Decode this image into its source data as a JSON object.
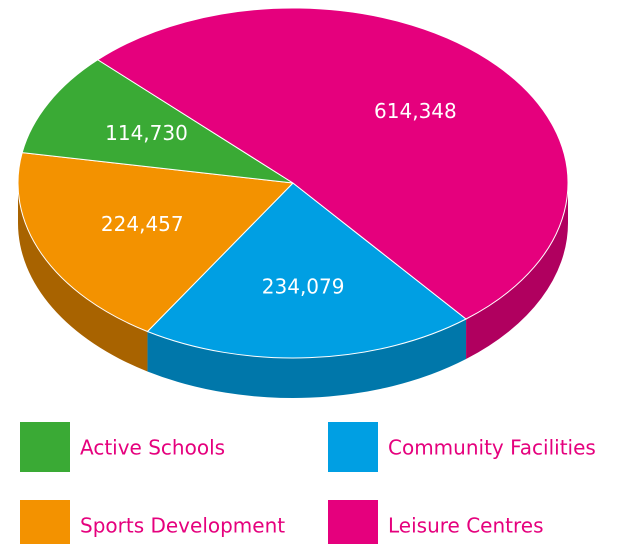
{
  "chart_data": {
    "type": "pie",
    "pie_style": "3d",
    "categories": [
      "Community Facilities",
      "Sports Development",
      "Active Schools",
      "Leisure Centres"
    ],
    "values": [
      234079,
      224457,
      114730,
      614348
    ],
    "value_labels": [
      "234,079",
      "224,457",
      "114,730",
      "614,348"
    ],
    "colors": [
      "#009fe3",
      "#f39200",
      "#3aaa35",
      "#e5007d"
    ],
    "side_colors": [
      "#0077aa",
      "#a86300",
      "#287a25",
      "#b0005f"
    ]
  }
}
